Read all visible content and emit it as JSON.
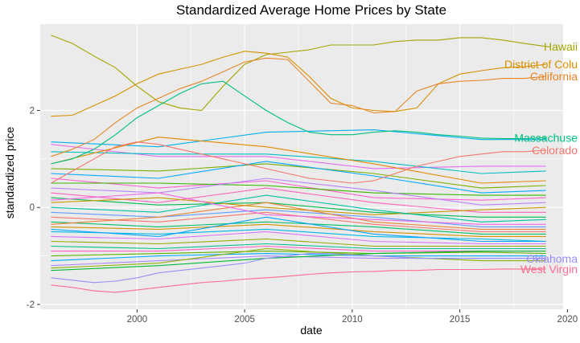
{
  "chart_data": {
    "type": "line",
    "title": "Standardized Average Home Prices by State",
    "xlabel": "date",
    "ylabel": "standardized price",
    "xlim": [
      1995.5,
      2019.8
    ],
    "ylim": [
      -2.1,
      3.78
    ],
    "x_ticks": [
      2000,
      2005,
      2010,
      2015,
      2020
    ],
    "x_tick_labels": [
      "2000",
      "2005",
      "2010",
      "2015",
      "2020"
    ],
    "y_ticks": [
      -2,
      0,
      2
    ],
    "y_tick_labels": [
      "-2",
      "0",
      "2"
    ],
    "grid": true,
    "legend": "none",
    "panel_background": "#ebebeb",
    "gridline_color": "#ffffff",
    "labeled_series": [
      {
        "name": "Hawaii",
        "label_text": "Hawaii",
        "color": "#a3a500",
        "x": [
          1996,
          1997,
          1998,
          1999,
          2000,
          2001,
          2002,
          2003,
          2004,
          2005,
          2006,
          2007,
          2008,
          2009,
          2010,
          2011,
          2012,
          2013,
          2014,
          2015,
          2016,
          2017,
          2018,
          2019
        ],
        "y": [
          3.55,
          3.38,
          3.12,
          2.88,
          2.5,
          2.18,
          2.05,
          2.0,
          2.5,
          2.95,
          3.15,
          3.2,
          3.25,
          3.35,
          3.35,
          3.35,
          3.42,
          3.45,
          3.45,
          3.5,
          3.5,
          3.45,
          3.38,
          3.32
        ]
      },
      {
        "name": "District of Columbia",
        "label_text": "District of Colu",
        "color": "#d89000",
        "x": [
          1996,
          1997,
          1998,
          1999,
          2000,
          2001,
          2002,
          2003,
          2004,
          2005,
          2006,
          2007,
          2008,
          2009,
          2010,
          2011,
          2012,
          2013,
          2014,
          2015,
          2016,
          2017,
          2018,
          2019
        ],
        "y": [
          1.88,
          1.9,
          2.1,
          2.3,
          2.55,
          2.75,
          2.85,
          2.95,
          3.1,
          3.22,
          3.18,
          3.1,
          2.7,
          2.25,
          2.05,
          2.0,
          1.98,
          2.05,
          2.55,
          2.75,
          2.82,
          2.88,
          2.9,
          2.95
        ]
      },
      {
        "name": "California",
        "label_text": "California",
        "color": "#e88526",
        "x": [
          1996,
          1997,
          1998,
          1999,
          2000,
          2001,
          2002,
          2003,
          2004,
          2005,
          2006,
          2007,
          2008,
          2009,
          2010,
          2011,
          2012,
          2013,
          2014,
          2015,
          2016,
          2017,
          2018,
          2019
        ],
        "y": [
          1.05,
          1.2,
          1.4,
          1.75,
          2.05,
          2.25,
          2.45,
          2.6,
          2.8,
          3.0,
          3.08,
          3.05,
          2.6,
          2.15,
          2.1,
          1.95,
          1.98,
          2.4,
          2.55,
          2.6,
          2.62,
          2.66,
          2.66,
          2.7
        ]
      },
      {
        "name": "Massachusetts",
        "label_text": "Massachuse",
        "color": "#00bf7d",
        "x": [
          1996,
          1997,
          1998,
          1999,
          2000,
          2001,
          2002,
          2003,
          2004,
          2005,
          2006,
          2007,
          2008,
          2009,
          2010,
          2011,
          2012,
          2013,
          2014,
          2015,
          2016,
          2017,
          2018,
          2019
        ],
        "y": [
          0.9,
          1.0,
          1.2,
          1.5,
          1.85,
          2.1,
          2.35,
          2.55,
          2.6,
          2.3,
          2.0,
          1.75,
          1.55,
          1.5,
          1.5,
          1.55,
          1.58,
          1.55,
          1.5,
          1.47,
          1.43,
          1.42,
          1.42,
          1.44
        ]
      },
      {
        "name": "Colorado",
        "label_text": "Colorado",
        "color": "#f8766d",
        "x": [
          1996,
          1997,
          1998,
          1999,
          2000,
          2001,
          2002,
          2003,
          2004,
          2005,
          2006,
          2007,
          2008,
          2009,
          2010,
          2011,
          2012,
          2013,
          2014,
          2015,
          2016,
          2017,
          2018,
          2019
        ],
        "y": [
          0.5,
          0.75,
          1.0,
          1.25,
          1.35,
          1.3,
          1.2,
          1.1,
          1.0,
          0.9,
          0.8,
          0.7,
          0.6,
          0.55,
          0.5,
          0.55,
          0.7,
          0.85,
          0.95,
          1.05,
          1.1,
          1.15,
          1.15,
          1.18
        ]
      },
      {
        "name": "Oklahoma",
        "label_text": "Oklahoma",
        "color": "#9590ff",
        "x": [
          1996,
          1997,
          1998,
          1999,
          2000,
          2001,
          2002,
          2003,
          2004,
          2005,
          2006,
          2007,
          2008,
          2009,
          2010,
          2011,
          2012,
          2013,
          2014,
          2015,
          2016,
          2017,
          2018,
          2019
        ],
        "y": [
          -1.45,
          -1.5,
          -1.55,
          -1.52,
          -1.45,
          -1.35,
          -1.3,
          -1.25,
          -1.2,
          -1.15,
          -1.05,
          -1.0,
          -0.95,
          -0.95,
          -0.98,
          -1.0,
          -1.02,
          -1.05,
          -1.05,
          -1.05,
          -1.05,
          -1.05,
          -1.05,
          -1.06
        ]
      },
      {
        "name": "West Virginia",
        "label_text": "West Virgin",
        "color": "#ff6c91",
        "x": [
          1996,
          1997,
          1998,
          1999,
          2000,
          2001,
          2002,
          2003,
          2004,
          2005,
          2006,
          2007,
          2008,
          2009,
          2010,
          2011,
          2012,
          2013,
          2014,
          2015,
          2016,
          2017,
          2018,
          2019
        ],
        "y": [
          -1.6,
          -1.65,
          -1.72,
          -1.75,
          -1.7,
          -1.65,
          -1.6,
          -1.55,
          -1.52,
          -1.48,
          -1.45,
          -1.42,
          -1.38,
          -1.35,
          -1.33,
          -1.32,
          -1.3,
          -1.3,
          -1.28,
          -1.28,
          -1.28,
          -1.27,
          -1.27,
          -1.27
        ]
      }
    ],
    "other_series": [
      {
        "color": "#e76bf3",
        "x": [
          1996,
          2001,
          2006,
          2011,
          2016,
          2019
        ],
        "y": [
          1.3,
          1.05,
          1.05,
          0.8,
          0.85,
          0.85
        ]
      },
      {
        "color": "#00b0f6",
        "x": [
          1996,
          2001,
          2006,
          2011,
          2016,
          2019
        ],
        "y": [
          1.35,
          1.25,
          1.55,
          1.6,
          1.4,
          1.4
        ]
      },
      {
        "color": "#00bfc4",
        "x": [
          1996,
          2001,
          2006,
          2011,
          2016,
          2019
        ],
        "y": [
          1.15,
          1.1,
          1.1,
          0.95,
          0.7,
          0.75
        ]
      },
      {
        "color": "#e58700",
        "x": [
          1996,
          2001,
          2006,
          2011,
          2016,
          2019
        ],
        "y": [
          0.9,
          1.45,
          1.25,
          0.9,
          0.5,
          0.55
        ]
      },
      {
        "color": "#7cae00",
        "x": [
          1996,
          2001,
          2006,
          2011,
          2016,
          2019
        ],
        "y": [
          0.8,
          0.75,
          0.9,
          0.7,
          0.4,
          0.45
        ]
      },
      {
        "color": "#00a9ff",
        "x": [
          1996,
          2001,
          2006,
          2011,
          2016,
          2019
        ],
        "y": [
          0.7,
          0.6,
          0.95,
          0.65,
          0.3,
          0.35
        ]
      },
      {
        "color": "#fd61d1",
        "x": [
          1996,
          2001,
          2006,
          2011,
          2016,
          2019
        ],
        "y": [
          0.6,
          0.4,
          0.55,
          0.2,
          0.15,
          0.2
        ]
      },
      {
        "color": "#39b600",
        "x": [
          1996,
          2001,
          2006,
          2011,
          2016,
          2019
        ],
        "y": [
          0.5,
          0.5,
          0.45,
          0.3,
          0.25,
          0.25
        ]
      },
      {
        "color": "#b983ff",
        "x": [
          1996,
          2001,
          2006,
          2011,
          2016,
          2019
        ],
        "y": [
          0.4,
          0.3,
          0.6,
          0.35,
          0.05,
          0.1
        ]
      },
      {
        "color": "#ff62bc",
        "x": [
          1996,
          2001,
          2006,
          2011,
          2016,
          2019
        ],
        "y": [
          0.3,
          0.1,
          0.4,
          0.1,
          -0.1,
          -0.1
        ]
      },
      {
        "color": "#00bb4e",
        "x": [
          1996,
          2001,
          2006,
          2011,
          2016,
          2019
        ],
        "y": [
          0.2,
          0.05,
          0.1,
          -0.1,
          -0.2,
          -0.2
        ]
      },
      {
        "color": "#c99800",
        "x": [
          1996,
          2001,
          2006,
          2011,
          2016,
          2019
        ],
        "y": [
          0.1,
          0.2,
          0.0,
          -0.15,
          -0.05,
          0.0
        ]
      },
      {
        "color": "#00c1a3",
        "x": [
          1996,
          2001,
          2006,
          2011,
          2016,
          2019
        ],
        "y": [
          0.0,
          -0.1,
          0.25,
          -0.05,
          -0.3,
          -0.25
        ]
      },
      {
        "color": "#619cff",
        "x": [
          1996,
          2001,
          2006,
          2011,
          2016,
          2019
        ],
        "y": [
          -0.1,
          -0.2,
          -0.05,
          -0.2,
          -0.4,
          -0.4
        ]
      },
      {
        "color": "#f8766d",
        "x": [
          1996,
          2001,
          2006,
          2011,
          2016,
          2019
        ],
        "y": [
          -0.2,
          -0.3,
          -0.1,
          -0.35,
          -0.5,
          -0.5
        ]
      },
      {
        "color": "#00be67",
        "x": [
          1996,
          2001,
          2006,
          2011,
          2016,
          2019
        ],
        "y": [
          -0.3,
          -0.4,
          -0.3,
          -0.4,
          -0.55,
          -0.55
        ]
      },
      {
        "color": "#d39200",
        "x": [
          1996,
          2001,
          2006,
          2011,
          2016,
          2019
        ],
        "y": [
          -0.4,
          -0.45,
          -0.35,
          -0.5,
          -0.6,
          -0.6
        ]
      },
      {
        "color": "#00b8e7",
        "x": [
          1996,
          2001,
          2006,
          2011,
          2016,
          2019
        ],
        "y": [
          -0.5,
          -0.55,
          -0.45,
          -0.6,
          -0.65,
          -0.7
        ]
      },
      {
        "color": "#db72fb",
        "x": [
          1996,
          2001,
          2006,
          2011,
          2016,
          2019
        ],
        "y": [
          -0.6,
          -0.65,
          -0.5,
          -0.7,
          -0.75,
          -0.75
        ]
      },
      {
        "color": "#93aa00",
        "x": [
          1996,
          2001,
          2006,
          2011,
          2016,
          2019
        ],
        "y": [
          -0.7,
          -0.75,
          -0.65,
          -0.8,
          -0.8,
          -0.8
        ]
      },
      {
        "color": "#00c08b",
        "x": [
          1996,
          2001,
          2006,
          2011,
          2016,
          2019
        ],
        "y": [
          -0.8,
          -0.85,
          -0.75,
          -0.85,
          -0.85,
          -0.85
        ]
      },
      {
        "color": "#ff61c3",
        "x": [
          1996,
          2001,
          2006,
          2011,
          2016,
          2019
        ],
        "y": [
          -0.9,
          -0.9,
          -0.8,
          -0.9,
          -0.9,
          -0.9
        ]
      },
      {
        "color": "#5eb300",
        "x": [
          1996,
          2001,
          2006,
          2011,
          2016,
          2019
        ],
        "y": [
          -1.0,
          -0.95,
          -0.9,
          -0.95,
          -0.92,
          -0.95
        ]
      },
      {
        "color": "#00abfd",
        "x": [
          1996,
          2001,
          2006,
          2011,
          2016,
          2019
        ],
        "y": [
          -1.1,
          -1.0,
          -0.95,
          -1.0,
          -1.0,
          -1.0
        ]
      },
      {
        "color": "#ae87ff",
        "x": [
          1996,
          2001,
          2006,
          2011,
          2016,
          2019
        ],
        "y": [
          -1.2,
          -1.1,
          -1.0,
          -1.05,
          -1.05,
          -1.05
        ]
      },
      {
        "color": "#eb8335",
        "x": [
          1996,
          2001,
          2006,
          2011,
          2016,
          2019
        ],
        "y": [
          -0.35,
          -0.2,
          0.1,
          -0.3,
          -0.45,
          -0.45
        ]
      },
      {
        "color": "#00ba38",
        "x": [
          1996,
          2001,
          2006,
          2011,
          2016,
          2019
        ],
        "y": [
          -1.3,
          -1.2,
          -1.05,
          -0.95,
          -0.9,
          -0.9
        ]
      },
      {
        "color": "#8ab200",
        "x": [
          1996,
          2001,
          2006,
          2011,
          2016,
          2019
        ],
        "y": [
          -1.25,
          -1.15,
          -0.85,
          -1.0,
          -1.1,
          -1.1
        ]
      },
      {
        "color": "#06a4ff",
        "x": [
          1996,
          2001,
          2006,
          2011,
          2016,
          2019
        ],
        "y": [
          -0.45,
          -0.6,
          -0.2,
          -0.55,
          -0.7,
          -0.7
        ]
      },
      {
        "color": "#f365e6",
        "x": [
          1996,
          2001,
          2006,
          2011,
          2016,
          2019
        ],
        "y": [
          0.15,
          0.3,
          -0.15,
          -0.25,
          -0.35,
          -0.35
        ]
      }
    ]
  }
}
